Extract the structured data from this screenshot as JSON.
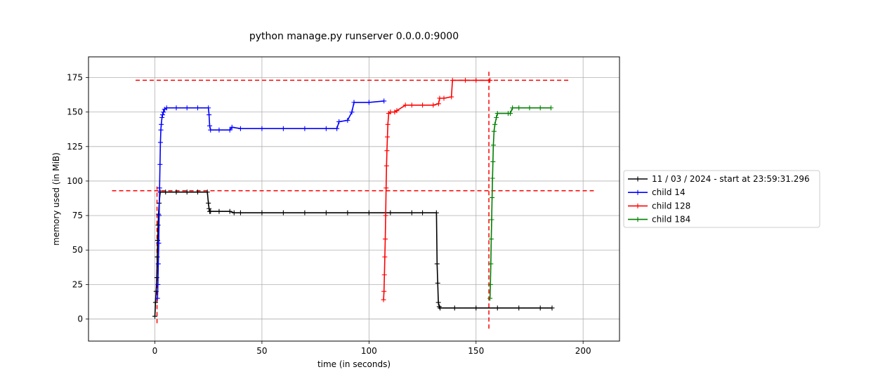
{
  "chart_data": {
    "type": "line",
    "title": "python manage.py runserver 0.0.0.0:9000",
    "xlabel": "time (in seconds)",
    "ylabel": "memory used (in MiB)",
    "xlim": [
      -31,
      217
    ],
    "ylim": [
      -16,
      190
    ],
    "xticks": [
      0,
      50,
      100,
      150,
      200
    ],
    "xtick_labels": [
      "0",
      "50",
      "100",
      "150",
      "200"
    ],
    "yticks": [
      0,
      25,
      50,
      75,
      100,
      125,
      150,
      175
    ],
    "ytick_labels": [
      "0",
      "25",
      "50",
      "75",
      "100",
      "125",
      "150",
      "175"
    ],
    "grid": true,
    "legend_position": "right, outside plot",
    "series": [
      {
        "name": "11 / 03 / 2024 - start at 23:59:31.296",
        "color": "#000000",
        "marker": "plus",
        "x": [
          0,
          0.3,
          0.6,
          0.9,
          1.1,
          1.3,
          1.5,
          1.7,
          2.0,
          2.5,
          5,
          10,
          15,
          20,
          24.5,
          25,
          25.3,
          25.6,
          26,
          30,
          35,
          37,
          40,
          50,
          60,
          70,
          80,
          90,
          100,
          110,
          120,
          125,
          131.5,
          131.8,
          132.1,
          132.4,
          132.8,
          133.2,
          140,
          150,
          160,
          170,
          180,
          185.5
        ],
        "y": [
          2,
          12,
          20,
          30,
          45,
          57,
          68,
          76,
          84,
          92,
          92,
          92,
          92,
          92,
          92,
          84,
          80,
          78,
          78,
          78,
          78,
          77,
          77,
          77,
          77,
          77,
          77,
          77,
          77,
          77,
          77,
          77,
          77,
          40,
          26,
          12,
          9,
          8,
          8,
          8,
          8,
          8,
          8,
          8
        ]
      },
      {
        "name": "child 14",
        "color": "#0000ff",
        "marker": "plus",
        "x": [
          1.2,
          1.4,
          1.6,
          1.8,
          2.0,
          2.2,
          2.4,
          2.6,
          2.8,
          3.0,
          3.3,
          3.6,
          4.0,
          4.5,
          5.5,
          10,
          15,
          20,
          25,
          25.3,
          25.6,
          26,
          30,
          35,
          36,
          40,
          50,
          60,
          70,
          80,
          85,
          86,
          90,
          92,
          93,
          100,
          107
        ],
        "y": [
          15,
          25,
          40,
          55,
          75,
          95,
          112,
          128,
          137,
          141,
          146,
          148,
          150,
          152,
          153,
          153,
          153,
          153,
          153,
          148,
          140,
          137,
          137,
          137,
          139,
          138,
          138,
          138,
          138,
          138,
          138,
          143,
          144,
          150,
          157,
          157,
          158
        ]
      },
      {
        "name": "child 128",
        "color": "#ff0000",
        "marker": "plus",
        "x": [
          106.8,
          107.0,
          107.2,
          107.4,
          107.6,
          107.8,
          108.0,
          108.2,
          108.4,
          108.6,
          108.8,
          109.2,
          110,
          112,
          113,
          117,
          120,
          125,
          130,
          132.5,
          133,
          135,
          138.5,
          139,
          145,
          150,
          156.5
        ],
        "y": [
          14,
          20,
          32,
          45,
          58,
          75,
          95,
          111,
          122,
          132,
          141,
          149,
          150,
          150,
          151,
          155,
          155,
          155,
          155,
          156,
          160,
          160,
          161,
          173,
          173,
          173,
          173
        ]
      },
      {
        "name": "child 184",
        "color": "#008000",
        "marker": "plus",
        "x": [
          156.5,
          156.7,
          156.9,
          157.1,
          157.3,
          157.5,
          157.7,
          157.9,
          158.1,
          158.4,
          158.8,
          159.5,
          160,
          165,
          166,
          167,
          170,
          175,
          180,
          185
        ],
        "y": [
          15,
          25,
          40,
          58,
          72,
          88,
          102,
          114,
          126,
          136,
          141,
          146,
          149,
          149,
          149,
          153,
          153,
          153,
          153,
          153
        ]
      }
    ],
    "reference_lines": [
      {
        "orientation": "horizontal",
        "y": 93,
        "x_from": -20,
        "x_to": 205,
        "color": "#ff0000",
        "style": "dashed"
      },
      {
        "orientation": "horizontal",
        "y": 173,
        "x_from": -9,
        "x_to": 194,
        "color": "#ff0000",
        "style": "dashed"
      },
      {
        "orientation": "vertical",
        "x": 1,
        "y_from": -3,
        "y_to": 96,
        "color": "#ff0000",
        "style": "dashed"
      },
      {
        "orientation": "vertical",
        "x": 156,
        "y_from": -7,
        "y_to": 181,
        "color": "#ff0000",
        "style": "dashed"
      }
    ]
  }
}
